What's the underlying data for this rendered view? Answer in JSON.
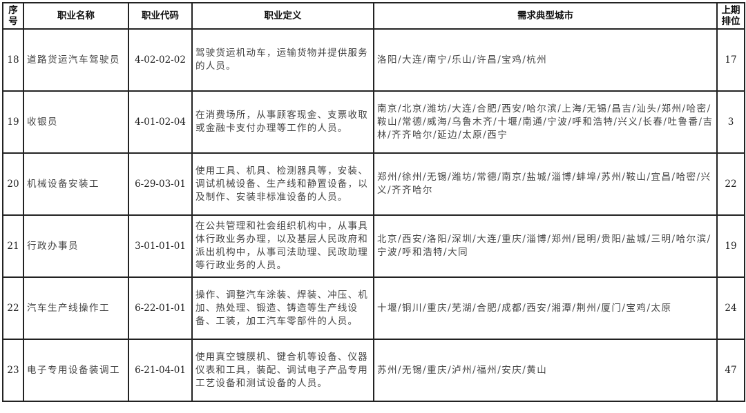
{
  "headers": {
    "seq": "序号",
    "name": "职业名称",
    "code": "职业代码",
    "definition": "职业定义",
    "cities": "需求典型城市",
    "last_rank": "上期排位"
  },
  "rows": [
    {
      "seq": "18",
      "name": "道路货运汽车驾驶员",
      "code": "4-02-02-02",
      "definition": "驾驶货运机动车，运输货物并提供服务的人员。",
      "cities": "洛阳/大连/南宁/乐山/许昌/宝鸡/杭州",
      "last_rank": "17"
    },
    {
      "seq": "19",
      "name": "收银员",
      "code": "4-01-02-04",
      "definition": "在消费场所，从事顾客现金、支票收取或金融卡支付办理等工作的人员。",
      "cities": "南京/北京/潍坊/大连/合肥/西安/哈尔滨/上海/无锡/昌吉/汕头/郑州/哈密/鞍山/常德/威海/乌鲁木齐/十堰/南通/宁波/呼和浩特/兴义/长春/吐鲁番/吉林/齐齐哈尔/延边/太原/西宁",
      "last_rank": "3"
    },
    {
      "seq": "20",
      "name": "机械设备安装工",
      "code": "6-29-03-01",
      "definition": "使用工具、机具、检测器具等，安装、调试机械设备、生产线和静置设备，以及制作、安装非标准设备的人员。",
      "cities": "郑州/徐州/无锡/潍坊/常德/南京/盐城/淄博/蚌埠/苏州/鞍山/宜昌/哈密/兴义/齐齐哈尔",
      "last_rank": "22"
    },
    {
      "seq": "21",
      "name": "行政办事员",
      "code": "3-01-01-01",
      "definition": "在公共管理和社会组织机构中，从事具体行政业务办理，以及基层人民政府和派出机构中，从事司法助理、民政助理等行政业务的人员。",
      "cities": "北京/西安/洛阳/深圳/大连/重庆/淄博/郑州/昆明/贵阳/盐城/三明/哈尔滨/宁波/呼和浩特/大同",
      "last_rank": "19"
    },
    {
      "seq": "22",
      "name": "汽车生产线操作工",
      "code": "6-22-01-01",
      "definition": "操作、调整汽车涂装、焊装、冲压、机加、热处理、锻造、铸造等生产线设备、工装，加工汽车零部件的人员。",
      "cities": "十堰/铜川/重庆/芜湖/合肥/成都/西安/湘潭/荆州/厦门/宝鸡/太原",
      "last_rank": "24"
    },
    {
      "seq": "23",
      "name": "电子专用设备装调工",
      "code": "6-21-04-01",
      "definition": "使用真空镀膜机、键合机等设备、仪器仪表和工具，装配、调试电子产品专用工艺设备和测试设备的人员。",
      "cities": "苏州/无锡/重庆/泸州/福州/安庆/黄山",
      "last_rank": "47"
    }
  ]
}
